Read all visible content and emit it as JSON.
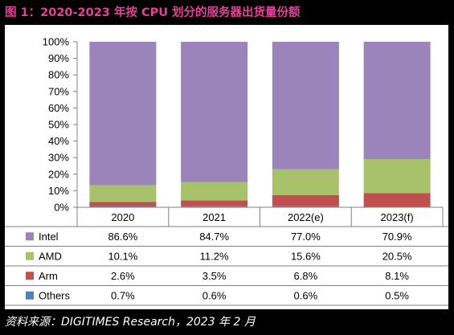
{
  "title": "图 1：2020-2023 年按 CPU 划分的服务器出货量份额",
  "source": "资料来源：DIGITIMES Research，2023 年 2 月",
  "colors": {
    "title": "#e8409a",
    "Intel": "#9b84b9",
    "AMD": "#a7c26a",
    "Arm": "#c0504d",
    "Others": "#4f81bd"
  },
  "chart_data": {
    "type": "bar",
    "stacked": true,
    "percent_axis": true,
    "ylim": [
      0,
      100
    ],
    "y_ticks": [
      "0%",
      "10%",
      "20%",
      "30%",
      "40%",
      "50%",
      "60%",
      "70%",
      "80%",
      "90%",
      "100%"
    ],
    "grid": false,
    "legend_placement": "data-table-left",
    "categories": [
      "2020",
      "2021",
      "2022(e)",
      "2023(f)"
    ],
    "series": [
      {
        "name": "Intel",
        "values": [
          86.6,
          84.7,
          77.0,
          70.9
        ],
        "labels": [
          "86.6%",
          "84.7%",
          "77.0%",
          "70.9%"
        ]
      },
      {
        "name": "AMD",
        "values": [
          10.1,
          11.2,
          15.6,
          20.5
        ],
        "labels": [
          "10.1%",
          "11.2%",
          "15.6%",
          "20.5%"
        ]
      },
      {
        "name": "Arm",
        "values": [
          2.6,
          3.5,
          6.8,
          8.1
        ],
        "labels": [
          "2.6%",
          "3.5%",
          "6.8%",
          "8.1%"
        ]
      },
      {
        "name": "Others",
        "values": [
          0.7,
          0.6,
          0.6,
          0.5
        ],
        "labels": [
          "0.7%",
          "0.6%",
          "0.6%",
          "0.5%"
        ]
      }
    ]
  }
}
